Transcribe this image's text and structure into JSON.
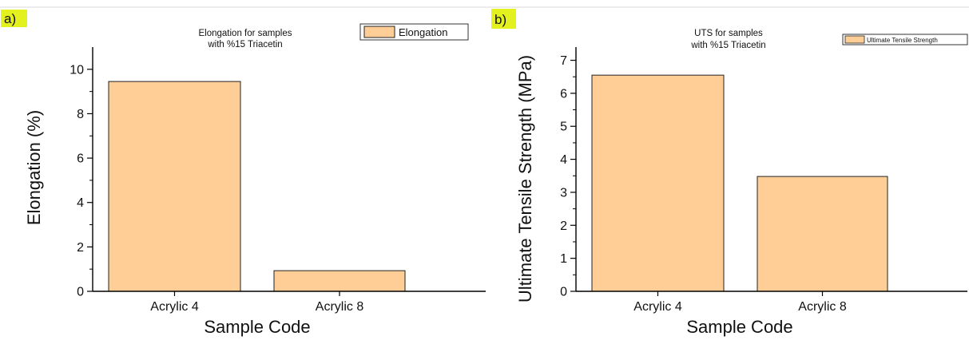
{
  "chart_data": [
    {
      "panel": "a)",
      "type": "bar",
      "title_lines": [
        "Elongation for samples",
        "with %15 Triacetin"
      ],
      "xlabel": "Sample Code",
      "ylabel": "Elongation (%)",
      "categories": [
        "Acrylic 4",
        "Acrylic 8"
      ],
      "series": [
        {
          "name": "Elongation",
          "values": [
            9.45,
            0.93
          ]
        }
      ],
      "ylim": [
        0,
        11
      ],
      "yticks": [
        0,
        2,
        4,
        6,
        8,
        10
      ],
      "legend": "top-right",
      "grid": false,
      "bar_color": "#FECE96",
      "edge_color": "#222222"
    },
    {
      "panel": "b)",
      "type": "bar",
      "title_lines": [
        "UTS for samples",
        "with %15 Triacetin"
      ],
      "xlabel": "Sample Code",
      "ylabel": "Ultimate Tensile Strength (MPa)",
      "categories": [
        "Acrylic 4",
        "Acrylic 8"
      ],
      "series": [
        {
          "name": "Ultimate Tensile Strength",
          "values": [
            6.55,
            3.48
          ]
        }
      ],
      "ylim": [
        0,
        7.4
      ],
      "yticks": [
        0,
        1,
        2,
        3,
        4,
        5,
        6,
        7
      ],
      "legend": "top-right",
      "grid": false,
      "bar_color": "#FECE96",
      "edge_color": "#222222"
    }
  ],
  "colors": {
    "panel_tag_bg": "#E3F21E",
    "axis": "#000000",
    "divider": "#E6E6E6"
  }
}
